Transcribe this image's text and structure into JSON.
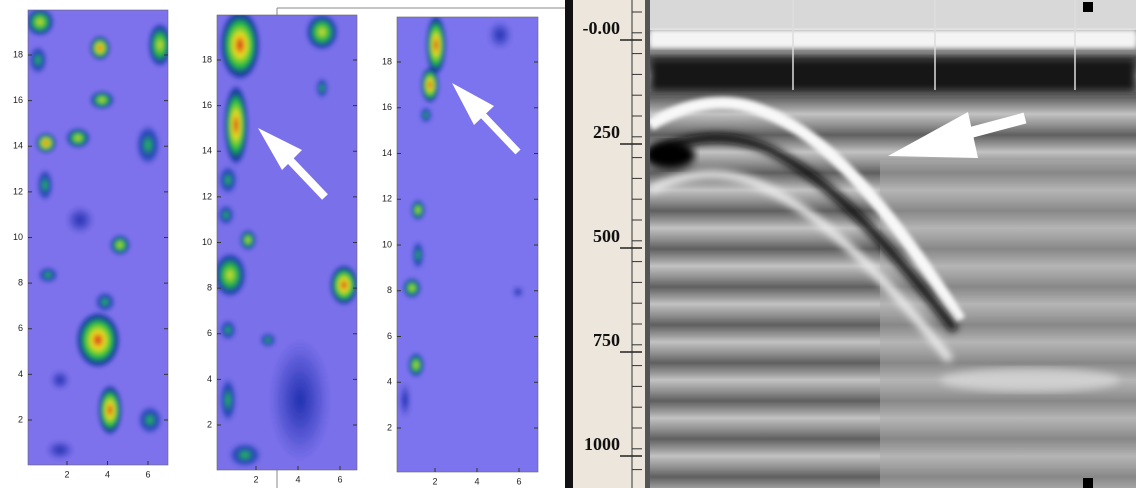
{
  "panels": [
    {
      "yticks": [
        "2",
        "4",
        "6",
        "8",
        "10",
        "12",
        "14",
        "16",
        "18"
      ],
      "xticks": [
        "2",
        "4",
        "6"
      ]
    },
    {
      "yticks": [
        "2",
        "4",
        "6",
        "8",
        "10",
        "12",
        "14",
        "16",
        "18"
      ],
      "xticks": [
        "2",
        "4",
        "6"
      ]
    },
    {
      "yticks": [
        "2",
        "4",
        "6",
        "8",
        "10",
        "12",
        "14",
        "16",
        "18"
      ],
      "xticks": [
        "2",
        "4",
        "6"
      ]
    }
  ],
  "radargram": {
    "depth_labels": [
      "-0.00",
      "250",
      "500",
      "750",
      "1000"
    ]
  }
}
